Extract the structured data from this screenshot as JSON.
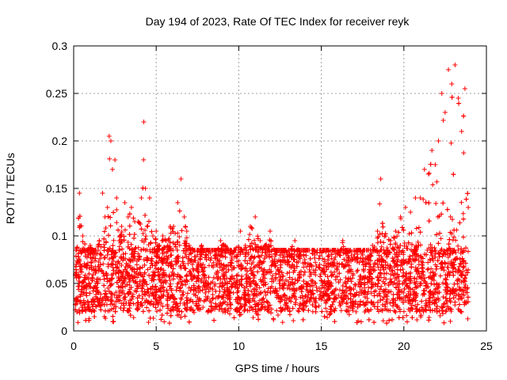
{
  "chart_data": {
    "type": "scatter",
    "title": "Day 194 of 2023, Rate Of TEC Index for receiver reyk",
    "xlabel": "GPS time / hours",
    "ylabel": "ROTI / TECUs",
    "xlim": [
      0,
      25
    ],
    "ylim": [
      0,
      0.3
    ],
    "x_ticks": [
      "0",
      "5",
      "10",
      "15",
      "20",
      "25"
    ],
    "y_ticks": [
      "0",
      "0.05",
      "0.1",
      "0.15",
      "0.2",
      "0.25",
      "0.3"
    ],
    "grid": true,
    "marker": "plus",
    "color": "#ff0000",
    "series": [
      {
        "x": [
          0.1,
          0.35,
          0.55,
          0.8,
          1.0,
          1.3,
          1.55,
          1.75,
          1.9,
          2.05,
          2.15,
          2.25,
          2.35,
          2.5,
          2.6,
          2.75,
          2.9,
          3.1,
          3.3,
          3.5,
          3.7,
          3.9,
          4.1,
          4.25,
          4.35,
          4.45,
          4.6,
          4.8,
          5.0,
          5.2,
          5.4,
          5.6,
          5.85,
          6.05,
          6.3,
          6.5,
          6.7,
          6.85,
          7.0,
          7.25,
          7.5,
          7.75,
          8.0,
          8.3,
          8.6,
          8.9,
          9.2,
          9.5,
          9.8,
          10.1,
          10.4,
          10.7,
          11.0,
          11.3,
          11.6,
          11.9,
          12.2,
          12.5,
          12.8,
          13.1,
          13.4,
          13.7,
          14.0,
          14.3,
          14.6,
          14.9,
          15.2,
          15.5,
          15.8,
          16.1,
          16.3,
          16.6,
          16.9,
          17.2,
          17.5,
          17.8,
          18.1,
          18.4,
          18.6,
          18.9,
          19.2,
          19.5,
          19.8,
          20.1,
          20.4,
          20.7,
          21.0,
          21.25,
          21.5,
          21.7,
          21.9,
          22.1,
          22.3,
          22.5,
          22.7,
          22.9,
          23.1,
          23.3,
          23.5,
          23.7,
          23.9
        ],
        "y": [
          0.06,
          0.145,
          0.1,
          0.085,
          0.09,
          0.08,
          0.095,
          0.145,
          0.12,
          0.13,
          0.205,
          0.2,
          0.17,
          0.18,
          0.14,
          0.095,
          0.11,
          0.135,
          0.12,
          0.13,
          0.115,
          0.115,
          0.14,
          0.22,
          0.15,
          0.11,
          0.14,
          0.1,
          0.105,
          0.09,
          0.1,
          0.095,
          0.11,
          0.11,
          0.135,
          0.16,
          0.12,
          0.105,
          0.09,
          0.085,
          0.08,
          0.09,
          0.085,
          0.085,
          0.08,
          0.095,
          0.09,
          0.085,
          0.085,
          0.105,
          0.09,
          0.11,
          0.12,
          0.095,
          0.09,
          0.105,
          0.08,
          0.08,
          0.085,
          0.085,
          0.095,
          0.08,
          0.075,
          0.07,
          0.08,
          0.07,
          0.075,
          0.07,
          0.075,
          0.08,
          0.095,
          0.07,
          0.075,
          0.075,
          0.08,
          0.085,
          0.09,
          0.105,
          0.16,
          0.1,
          0.095,
          0.105,
          0.12,
          0.13,
          0.125,
          0.14,
          0.14,
          0.17,
          0.165,
          0.19,
          0.175,
          0.2,
          0.25,
          0.23,
          0.275,
          0.26,
          0.28,
          0.245,
          0.21,
          0.255,
          0.13
        ]
      }
    ],
    "baseline_band": [
      0.02,
      0.085
    ]
  }
}
